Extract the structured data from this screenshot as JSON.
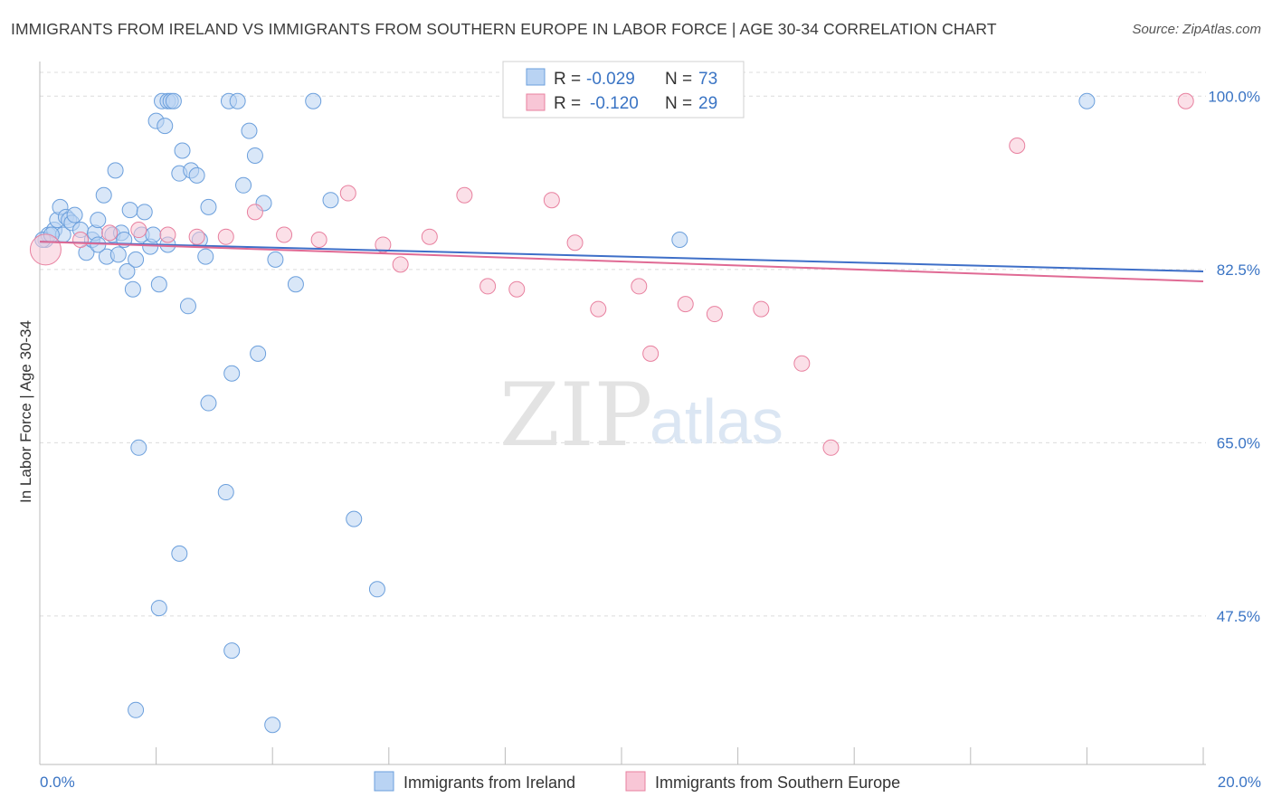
{
  "header": {
    "title": "IMMIGRANTS FROM IRELAND VS IMMIGRANTS FROM SOUTHERN EUROPE IN LABOR FORCE | AGE 30-34 CORRELATION CHART",
    "source": "Source: ZipAtlas.com"
  },
  "watermark": {
    "zip": "ZIP",
    "atlas": "atlas"
  },
  "colors": {
    "ireland_fill": "#b9d3f3",
    "ireland_stroke": "#6b9fdc",
    "southern_fill": "#f8c6d6",
    "southern_stroke": "#e8809f",
    "trend_ireland": "#3e6fc8",
    "trend_southern": "#e06a94",
    "tick_text": "#3a74c4",
    "grid": "#dcdcdc"
  },
  "legend": {
    "rows": [
      {
        "r_label": "R =",
        "r_value": "-0.029",
        "n_label": "N =",
        "n_value": "73"
      },
      {
        "r_label": "R =",
        "r_value": "-0.120",
        "n_label": "N =",
        "n_value": "29"
      }
    ]
  },
  "chart_data": {
    "type": "scatter",
    "title": "IMMIGRANTS FROM IRELAND VS IMMIGRANTS FROM SOUTHERN EUROPE IN LABOR FORCE | AGE 30-34 CORRELATION CHART",
    "xlabel": "",
    "ylabel": "In Labor Force | Age 30-34",
    "xlim": [
      0,
      20
    ],
    "ylim": [
      32.5,
      103.5
    ],
    "x_tick_labels": [
      "0.0%",
      "20.0%"
    ],
    "y_ticks": [
      47.5,
      65.0,
      82.5,
      100.0
    ],
    "y_tick_labels": [
      "47.5%",
      "65.0%",
      "82.5%",
      "100.0%"
    ],
    "grid": true,
    "legend_position": "top-center",
    "series": [
      {
        "name": "Immigrants from Ireland",
        "r": -0.029,
        "n": 73,
        "trend": [
          [
            0,
            85.3
          ],
          [
            20,
            82.3
          ]
        ],
        "points": [
          [
            0.1,
            85.5
          ],
          [
            0.15,
            86.0
          ],
          [
            0.25,
            86.5
          ],
          [
            0.3,
            87.5
          ],
          [
            0.35,
            88.8
          ],
          [
            0.4,
            86.0
          ],
          [
            0.45,
            87.8
          ],
          [
            0.5,
            87.5
          ],
          [
            0.55,
            87.2
          ],
          [
            0.6,
            88.0
          ],
          [
            0.7,
            86.5
          ],
          [
            0.8,
            84.2
          ],
          [
            0.9,
            85.5
          ],
          [
            0.95,
            86.2
          ],
          [
            1.0,
            87.5
          ],
          [
            1.1,
            90.0
          ],
          [
            1.15,
            83.8
          ],
          [
            1.25,
            86.0
          ],
          [
            1.3,
            92.5
          ],
          [
            1.4,
            86.2
          ],
          [
            1.5,
            82.3
          ],
          [
            1.55,
            88.5
          ],
          [
            1.6,
            80.5
          ],
          [
            1.65,
            83.5
          ],
          [
            1.75,
            86.0
          ],
          [
            1.8,
            88.3
          ],
          [
            1.9,
            84.8
          ],
          [
            1.95,
            86.0
          ],
          [
            2.0,
            97.5
          ],
          [
            2.05,
            81.0
          ],
          [
            2.1,
            99.5
          ],
          [
            2.15,
            97.0
          ],
          [
            2.2,
            99.5
          ],
          [
            2.25,
            99.5
          ],
          [
            2.3,
            99.5
          ],
          [
            2.4,
            92.2
          ],
          [
            2.45,
            94.5
          ],
          [
            2.55,
            78.8
          ],
          [
            2.6,
            92.5
          ],
          [
            2.7,
            92.0
          ],
          [
            2.75,
            85.5
          ],
          [
            2.85,
            83.8
          ],
          [
            2.9,
            88.8
          ],
          [
            3.25,
            99.5
          ],
          [
            3.4,
            99.5
          ],
          [
            3.5,
            91.0
          ],
          [
            3.6,
            96.5
          ],
          [
            3.7,
            94.0
          ],
          [
            3.85,
            89.2
          ],
          [
            4.05,
            83.5
          ],
          [
            4.4,
            81.0
          ],
          [
            4.7,
            99.5
          ],
          [
            5.0,
            89.5
          ],
          [
            11.0,
            85.5
          ],
          [
            18.0,
            99.5
          ],
          [
            1.7,
            64.5
          ],
          [
            1.65,
            38.0
          ],
          [
            2.05,
            48.3
          ],
          [
            2.4,
            53.8
          ],
          [
            2.9,
            69.0
          ],
          [
            3.2,
            60.0
          ],
          [
            3.3,
            72.0
          ],
          [
            3.3,
            44.0
          ],
          [
            3.75,
            74.0
          ],
          [
            4.0,
            36.5
          ],
          [
            5.4,
            57.3
          ],
          [
            5.8,
            50.2
          ],
          [
            0.05,
            85.5
          ],
          [
            0.2,
            86.0
          ],
          [
            1.0,
            85.0
          ],
          [
            1.35,
            84.0
          ],
          [
            2.2,
            85.0
          ],
          [
            1.45,
            85.5
          ]
        ]
      },
      {
        "name": "Immigrants from Southern Europe",
        "r": -0.12,
        "n": 29,
        "trend": [
          [
            0,
            85.3
          ],
          [
            20,
            81.3
          ]
        ],
        "points": [
          [
            0.1,
            84.5
          ],
          [
            0.7,
            85.5
          ],
          [
            1.2,
            86.2
          ],
          [
            1.7,
            86.5
          ],
          [
            2.2,
            86.0
          ],
          [
            2.7,
            85.8
          ],
          [
            3.2,
            85.8
          ],
          [
            3.7,
            88.3
          ],
          [
            4.2,
            86.0
          ],
          [
            4.8,
            85.5
          ],
          [
            5.3,
            90.2
          ],
          [
            5.9,
            85.0
          ],
          [
            6.2,
            83.0
          ],
          [
            6.7,
            85.8
          ],
          [
            7.3,
            90.0
          ],
          [
            7.7,
            80.8
          ],
          [
            8.2,
            80.5
          ],
          [
            8.8,
            89.5
          ],
          [
            9.2,
            85.2
          ],
          [
            9.6,
            78.5
          ],
          [
            10.3,
            80.8
          ],
          [
            10.5,
            74.0
          ],
          [
            11.1,
            79.0
          ],
          [
            11.6,
            78.0
          ],
          [
            12.4,
            78.5
          ],
          [
            13.1,
            73.0
          ],
          [
            13.6,
            64.5
          ],
          [
            16.8,
            95.0
          ],
          [
            19.7,
            99.5
          ]
        ]
      }
    ]
  },
  "bottom_legend": {
    "items": [
      "Immigrants from Ireland",
      "Immigrants from Southern Europe"
    ]
  }
}
